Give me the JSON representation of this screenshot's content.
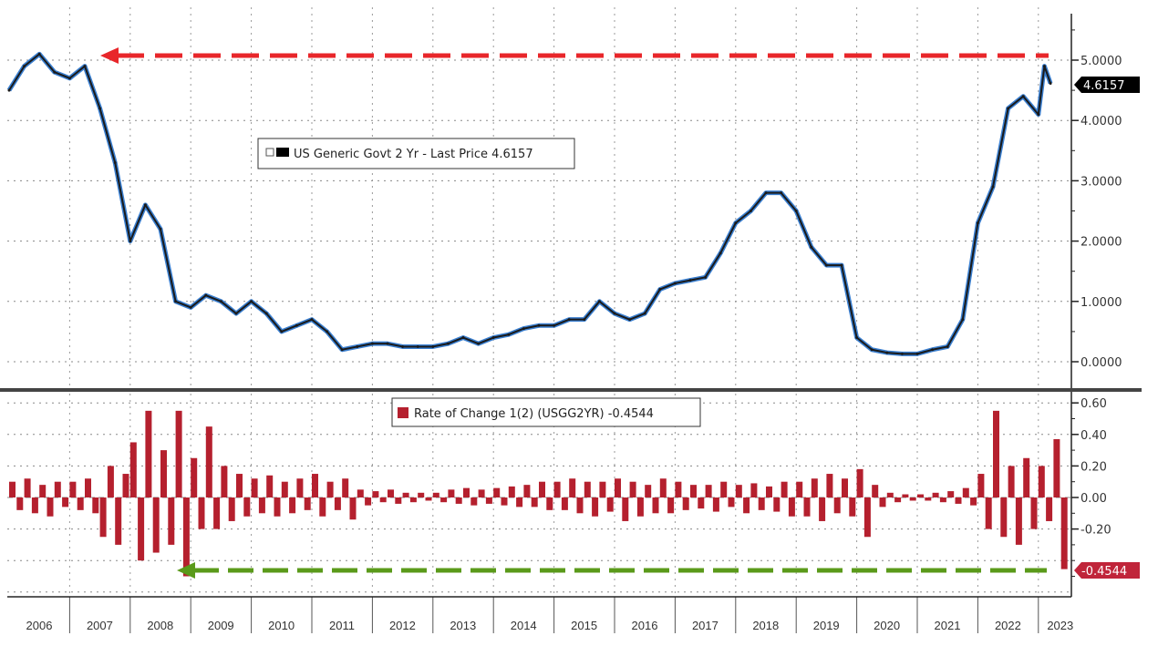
{
  "chart_data": [
    {
      "type": "line",
      "legend": "US Generic Govt 2 Yr - Last Price 4.6157",
      "last_value_label": "4.6157",
      "colors": {
        "line": "#1a1a1a",
        "highlight": "#3a7fd0",
        "annotation": "#e8262a"
      },
      "y_ticks": [
        "0.0000",
        "1.0000",
        "2.0000",
        "3.0000",
        "4.0000",
        "5.0000"
      ],
      "ylim": [
        -0.35,
        5.6
      ],
      "grid": true,
      "annotation": "red dashed arrow at 2007 high (~5.1) extending to latest value",
      "x": [
        2006.0,
        2006.25,
        2006.5,
        2006.75,
        2007.0,
        2007.25,
        2007.5,
        2007.75,
        2008.0,
        2008.25,
        2008.5,
        2008.75,
        2009.0,
        2009.25,
        2009.5,
        2009.75,
        2010.0,
        2010.25,
        2010.5,
        2010.75,
        2011.0,
        2011.25,
        2011.5,
        2011.75,
        2012.0,
        2012.25,
        2012.5,
        2012.75,
        2013.0,
        2013.25,
        2013.5,
        2013.75,
        2014.0,
        2014.25,
        2014.5,
        2014.75,
        2015.0,
        2015.25,
        2015.5,
        2015.75,
        2016.0,
        2016.25,
        2016.5,
        2016.75,
        2017.0,
        2017.25,
        2017.5,
        2017.75,
        2018.0,
        2018.25,
        2018.5,
        2018.75,
        2019.0,
        2019.25,
        2019.5,
        2019.75,
        2020.0,
        2020.25,
        2020.5,
        2020.75,
        2021.0,
        2021.25,
        2021.5,
        2021.75,
        2022.0,
        2022.25,
        2022.5,
        2022.75,
        2023.0,
        2023.1,
        2023.2
      ],
      "y": [
        4.5,
        4.9,
        5.1,
        4.8,
        4.7,
        4.9,
        4.2,
        3.3,
        2.0,
        2.6,
        2.2,
        1.0,
        0.9,
        1.1,
        1.0,
        0.8,
        1.0,
        0.8,
        0.5,
        0.6,
        0.7,
        0.5,
        0.2,
        0.25,
        0.3,
        0.3,
        0.25,
        0.25,
        0.25,
        0.3,
        0.4,
        0.3,
        0.4,
        0.45,
        0.55,
        0.6,
        0.6,
        0.7,
        0.7,
        1.0,
        0.8,
        0.7,
        0.8,
        1.2,
        1.3,
        1.35,
        1.4,
        1.8,
        2.3,
        2.5,
        2.8,
        2.8,
        2.5,
        1.9,
        1.6,
        1.6,
        0.4,
        0.2,
        0.15,
        0.13,
        0.13,
        0.2,
        0.25,
        0.7,
        2.3,
        2.9,
        4.2,
        4.4,
        4.1,
        4.9,
        4.6157
      ]
    },
    {
      "type": "bar",
      "legend": "Rate of Change 1(2) (USGG2YR) -0.4544",
      "last_value_label": "-0.4544",
      "colors": {
        "bar": "#b5202e",
        "annotation": "#5a9a1a"
      },
      "y_ticks": [
        "-0.20",
        "0.00",
        "0.20",
        "0.40",
        "0.60"
      ],
      "ylim": [
        -0.6,
        0.62
      ],
      "annotation": "green dashed arrow at 2008 low (~-0.5) extending to latest value",
      "x_start": 2006.0,
      "x_step": 0.125,
      "values": [
        0.1,
        -0.08,
        0.12,
        -0.1,
        0.08,
        -0.12,
        0.1,
        -0.06,
        0.1,
        -0.08,
        0.12,
        -0.1,
        -0.25,
        0.2,
        -0.3,
        0.15,
        0.35,
        -0.4,
        0.55,
        -0.35,
        0.3,
        -0.3,
        0.55,
        -0.5,
        0.25,
        -0.2,
        0.45,
        -0.2,
        0.2,
        -0.15,
        0.15,
        -0.12,
        0.12,
        -0.1,
        0.14,
        -0.12,
        0.1,
        -0.1,
        0.12,
        -0.08,
        0.15,
        -0.12,
        0.1,
        -0.08,
        0.12,
        -0.14,
        0.05,
        -0.05,
        0.04,
        -0.03,
        0.05,
        -0.04,
        0.03,
        -0.03,
        0.03,
        -0.02,
        0.03,
        -0.03,
        0.05,
        -0.04,
        0.06,
        -0.05,
        0.05,
        -0.04,
        0.06,
        -0.05,
        0.07,
        -0.06,
        0.08,
        -0.06,
        0.1,
        -0.08,
        0.1,
        -0.08,
        0.12,
        -0.1,
        0.1,
        -0.12,
        0.1,
        -0.09,
        0.12,
        -0.15,
        0.1,
        -0.12,
        0.08,
        -0.1,
        0.12,
        -0.1,
        0.1,
        -0.08,
        0.08,
        -0.07,
        0.08,
        -0.09,
        0.1,
        -0.06,
        0.08,
        -0.1,
        0.09,
        -0.08,
        0.07,
        -0.09,
        0.1,
        -0.12,
        0.1,
        -0.12,
        0.12,
        -0.15,
        0.15,
        -0.1,
        0.12,
        -0.12,
        0.18,
        -0.25,
        0.08,
        -0.06,
        0.03,
        -0.03,
        0.02,
        -0.02,
        0.02,
        -0.02,
        0.03,
        -0.03,
        0.04,
        -0.04,
        0.06,
        -0.05,
        0.15,
        -0.2,
        0.55,
        -0.25,
        0.2,
        -0.3,
        0.25,
        -0.2,
        0.2,
        -0.15,
        0.37,
        -0.4544
      ]
    }
  ],
  "x_axis": {
    "years": [
      "2006",
      "2007",
      "2008",
      "2009",
      "2010",
      "2011",
      "2012",
      "2013",
      "2014",
      "2015",
      "2016",
      "2017",
      "2018",
      "2019",
      "2020",
      "2021",
      "2022",
      "2023"
    ]
  }
}
